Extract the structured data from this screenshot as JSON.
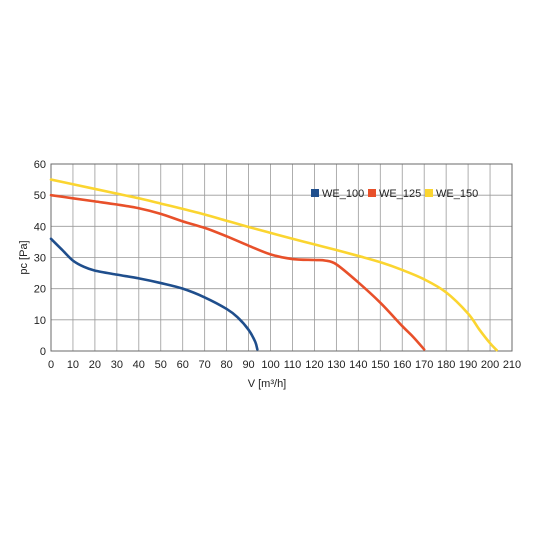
{
  "chart_data": {
    "type": "line",
    "xlabel": "V [m³/h]",
    "ylabel": "pc [Pa]",
    "xlim": [
      0,
      210
    ],
    "ylim": [
      0,
      60
    ],
    "xticks": [
      "0",
      "10",
      "20",
      "30",
      "40",
      "50",
      "60",
      "70",
      "80",
      "90",
      "100",
      "110",
      "120",
      "130",
      "140",
      "150",
      "160",
      "170",
      "180",
      "190",
      "200",
      "210"
    ],
    "yticks": [
      "0",
      "10",
      "20",
      "30",
      "40",
      "50",
      "60"
    ],
    "grid": true,
    "legend_position": "top-right",
    "series": [
      {
        "name": "WE_100",
        "color": "#1f4e8c",
        "points": [
          [
            0,
            36
          ],
          [
            5,
            32.5
          ],
          [
            10,
            29
          ],
          [
            15,
            27
          ],
          [
            20,
            25.8
          ],
          [
            30,
            24.5
          ],
          [
            40,
            23.3
          ],
          [
            50,
            21.8
          ],
          [
            60,
            20
          ],
          [
            70,
            17.2
          ],
          [
            80,
            13.5
          ],
          [
            85,
            10.8
          ],
          [
            90,
            6.8
          ],
          [
            93,
            3
          ],
          [
            94,
            0.5
          ]
        ]
      },
      {
        "name": "WE_125",
        "color": "#e8502a",
        "points": [
          [
            0,
            50
          ],
          [
            10,
            49
          ],
          [
            20,
            48
          ],
          [
            30,
            47
          ],
          [
            40,
            45.8
          ],
          [
            50,
            44
          ],
          [
            60,
            41.6
          ],
          [
            70,
            39.5
          ],
          [
            80,
            36.8
          ],
          [
            90,
            33.8
          ],
          [
            100,
            31
          ],
          [
            110,
            29.5
          ],
          [
            120,
            29.2
          ],
          [
            125,
            29
          ],
          [
            130,
            27.8
          ],
          [
            140,
            22
          ],
          [
            150,
            15.5
          ],
          [
            160,
            8
          ],
          [
            165,
            4.5
          ],
          [
            170,
            0.5
          ]
        ]
      },
      {
        "name": "WE_150",
        "color": "#fbd530",
        "points": [
          [
            0,
            55
          ],
          [
            10,
            53.5
          ],
          [
            20,
            52
          ],
          [
            30,
            50.5
          ],
          [
            40,
            49
          ],
          [
            50,
            47.3
          ],
          [
            60,
            45.6
          ],
          [
            70,
            43.8
          ],
          [
            80,
            41.8
          ],
          [
            90,
            39.8
          ],
          [
            100,
            37.9
          ],
          [
            110,
            36
          ],
          [
            120,
            34.2
          ],
          [
            130,
            32.4
          ],
          [
            140,
            30.5
          ],
          [
            150,
            28.5
          ],
          [
            160,
            26
          ],
          [
            170,
            23
          ],
          [
            180,
            18.8
          ],
          [
            190,
            12
          ],
          [
            195,
            7
          ],
          [
            200,
            2.5
          ],
          [
            203,
            0.3
          ]
        ]
      }
    ]
  }
}
